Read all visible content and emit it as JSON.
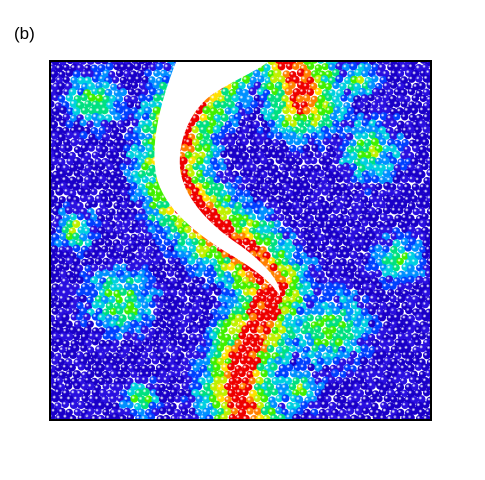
{
  "figure": {
    "panel_label": "(b)",
    "palette": [
      "#1a00c8",
      "#2a10e0",
      "#0040ff",
      "#0090ff",
      "#00d0e0",
      "#00e080",
      "#40f000",
      "#c0f000",
      "#ffe000",
      "#ff8000",
      "#ee0000"
    ]
  }
}
